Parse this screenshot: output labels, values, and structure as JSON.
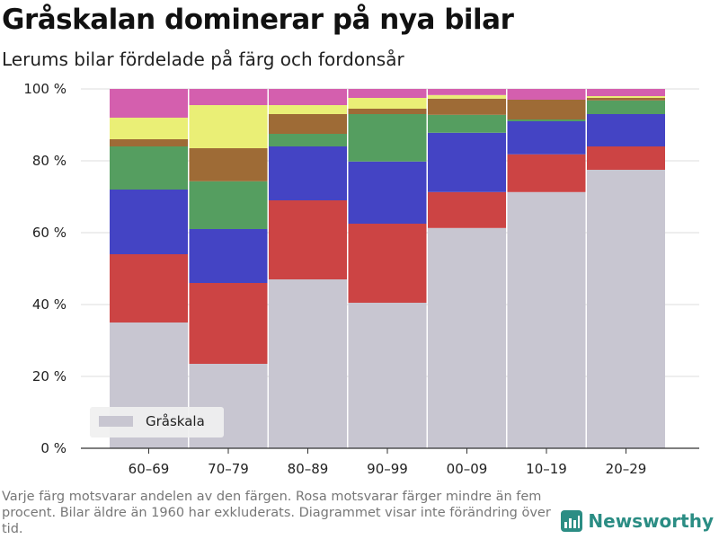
{
  "title": "Gråskalan dominerar på nya bilar",
  "subtitle": "Lerums bilar fördelade på färg och fordonsår",
  "footnote": "Varje färg motsvarar andelen av den färgen. Rosa motsvarar färger mindre än fem procent. Bilar äldre än 1960 har exkluderats. Diagrammet visar inte förändring över tid.",
  "brand": {
    "name": "Newsworthy",
    "icon": "newsworthy-logo-icon",
    "color": "#2b8d84"
  },
  "chart_data": {
    "type": "bar",
    "stacked": true,
    "categories": [
      "60–69",
      "70–79",
      "80–89",
      "90–99",
      "00–09",
      "10–19",
      "20–29"
    ],
    "ylim": [
      0,
      100
    ],
    "yticks": [
      "0 %",
      "20 %",
      "40 %",
      "60 %",
      "80 %",
      "100 %"
    ],
    "ytick_values": [
      0,
      20,
      40,
      60,
      80,
      100
    ],
    "grid": "horizontal",
    "legend": {
      "placement": "bottom-left",
      "entries": [
        "Gråskala"
      ]
    },
    "series": [
      {
        "name": "Gråskala",
        "color": "#c8c6d1",
        "values": [
          35,
          23.5,
          47,
          40.5,
          61.3,
          71.3,
          77.5
        ]
      },
      {
        "color": "#cc4444",
        "values": [
          19,
          22.5,
          22,
          22,
          10,
          10.5,
          6.5
        ]
      },
      {
        "color": "#4444c4",
        "values": [
          18,
          15,
          15,
          17.3,
          16.5,
          9.2,
          9
        ]
      },
      {
        "color": "#559e60",
        "values": [
          12,
          13.3,
          3.5,
          13.2,
          5,
          0.5,
          3.8
        ]
      },
      {
        "color": "#9e6b36",
        "values": [
          2,
          9.2,
          5.5,
          1.5,
          4.5,
          5.5,
          0.7
        ]
      },
      {
        "color": "#eaef76",
        "values": [
          6,
          12,
          2.5,
          3,
          1,
          0,
          0.5
        ]
      },
      {
        "color": "#d45fae",
        "values": [
          8,
          4.5,
          4.5,
          2.5,
          1.7,
          3,
          2
        ]
      }
    ]
  }
}
